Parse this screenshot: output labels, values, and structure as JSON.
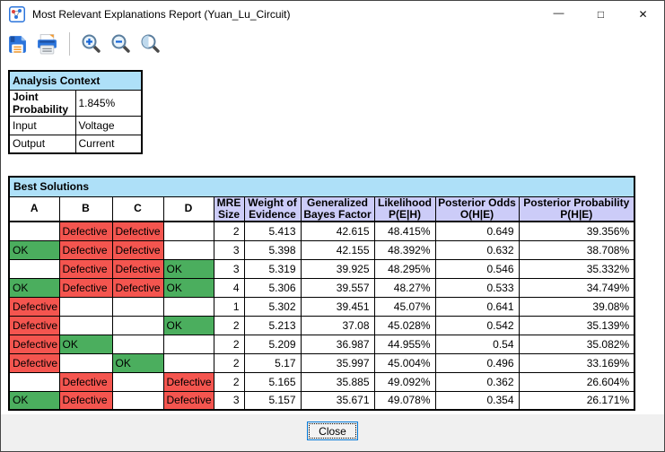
{
  "window": {
    "title": "Most Relevant Explanations Report (Yuan_Lu_Circuit)",
    "controls": {
      "minimize": "—",
      "maximize": "□",
      "close": "✕"
    }
  },
  "toolbar": {
    "buttons": [
      "save",
      "print",
      "zoom-in",
      "zoom-out",
      "zoom-selection"
    ]
  },
  "analysis_context": {
    "title": "Analysis Context",
    "rows": [
      {
        "label": "Joint Probability",
        "value": "1.845%"
      },
      {
        "label": "Input",
        "value": "Voltage"
      },
      {
        "label": "Output",
        "value": "Current"
      }
    ]
  },
  "best_solutions": {
    "title": "Best Solutions",
    "columns": [
      {
        "label": "A",
        "shaded": false
      },
      {
        "label": "B",
        "shaded": false
      },
      {
        "label": "C",
        "shaded": false
      },
      {
        "label": "D",
        "shaded": false
      },
      {
        "label": "MRE\nSize",
        "shaded": true
      },
      {
        "label": "Weight of\nEvidence",
        "shaded": true
      },
      {
        "label": "Generalized\nBayes Factor",
        "shaded": true
      },
      {
        "label": "Likelihood\nP(E|H)",
        "shaded": true
      },
      {
        "label": "Posterior Odds\nO(H|E)",
        "shaded": true
      },
      {
        "label": "Posterior Probability\nP(H|E)",
        "shaded": true
      }
    ],
    "rows": [
      {
        "a": "",
        "b": "Defective",
        "c": "Defective",
        "d": "",
        "mre_size": "2",
        "weight_of_evidence": "5.413",
        "generalized_bayes_factor": "42.615",
        "likelihood": "48.415%",
        "posterior_odds": "0.649",
        "posterior_probability": "39.356%"
      },
      {
        "a": "OK",
        "b": "Defective",
        "c": "Defective",
        "d": "",
        "mre_size": "3",
        "weight_of_evidence": "5.398",
        "generalized_bayes_factor": "42.155",
        "likelihood": "48.392%",
        "posterior_odds": "0.632",
        "posterior_probability": "38.708%"
      },
      {
        "a": "",
        "b": "Defective",
        "c": "Defective",
        "d": "OK",
        "mre_size": "3",
        "weight_of_evidence": "5.319",
        "generalized_bayes_factor": "39.925",
        "likelihood": "48.295%",
        "posterior_odds": "0.546",
        "posterior_probability": "35.332%"
      },
      {
        "a": "OK",
        "b": "Defective",
        "c": "Defective",
        "d": "OK",
        "mre_size": "4",
        "weight_of_evidence": "5.306",
        "generalized_bayes_factor": "39.557",
        "likelihood": "48.27%",
        "posterior_odds": "0.533",
        "posterior_probability": "34.749%"
      },
      {
        "a": "Defective",
        "b": "",
        "c": "",
        "d": "",
        "mre_size": "1",
        "weight_of_evidence": "5.302",
        "generalized_bayes_factor": "39.451",
        "likelihood": "45.07%",
        "posterior_odds": "0.641",
        "posterior_probability": "39.08%"
      },
      {
        "a": "Defective",
        "b": "",
        "c": "",
        "d": "OK",
        "mre_size": "2",
        "weight_of_evidence": "5.213",
        "generalized_bayes_factor": "37.08",
        "likelihood": "45.028%",
        "posterior_odds": "0.542",
        "posterior_probability": "35.139%"
      },
      {
        "a": "Defective",
        "b": "OK",
        "c": "",
        "d": "",
        "mre_size": "2",
        "weight_of_evidence": "5.209",
        "generalized_bayes_factor": "36.987",
        "likelihood": "44.955%",
        "posterior_odds": "0.54",
        "posterior_probability": "35.082%"
      },
      {
        "a": "Defective",
        "b": "",
        "c": "OK",
        "d": "",
        "mre_size": "2",
        "weight_of_evidence": "5.17",
        "generalized_bayes_factor": "35.997",
        "likelihood": "45.004%",
        "posterior_odds": "0.496",
        "posterior_probability": "33.169%"
      },
      {
        "a": "",
        "b": "Defective",
        "c": "",
        "d": "Defective",
        "mre_size": "2",
        "weight_of_evidence": "5.165",
        "generalized_bayes_factor": "35.885",
        "likelihood": "49.092%",
        "posterior_odds": "0.362",
        "posterior_probability": "26.604%"
      },
      {
        "a": "OK",
        "b": "Defective",
        "c": "",
        "d": "Defective",
        "mre_size": "3",
        "weight_of_evidence": "5.157",
        "generalized_bayes_factor": "35.671",
        "likelihood": "49.078%",
        "posterior_odds": "0.354",
        "posterior_probability": "26.171%"
      }
    ]
  },
  "footer": {
    "close_label": "Close"
  },
  "colors": {
    "blue": "#AEE0F8",
    "lav": "#CCCCF8",
    "red": "#F4554F",
    "green": "#4BAE5E"
  }
}
